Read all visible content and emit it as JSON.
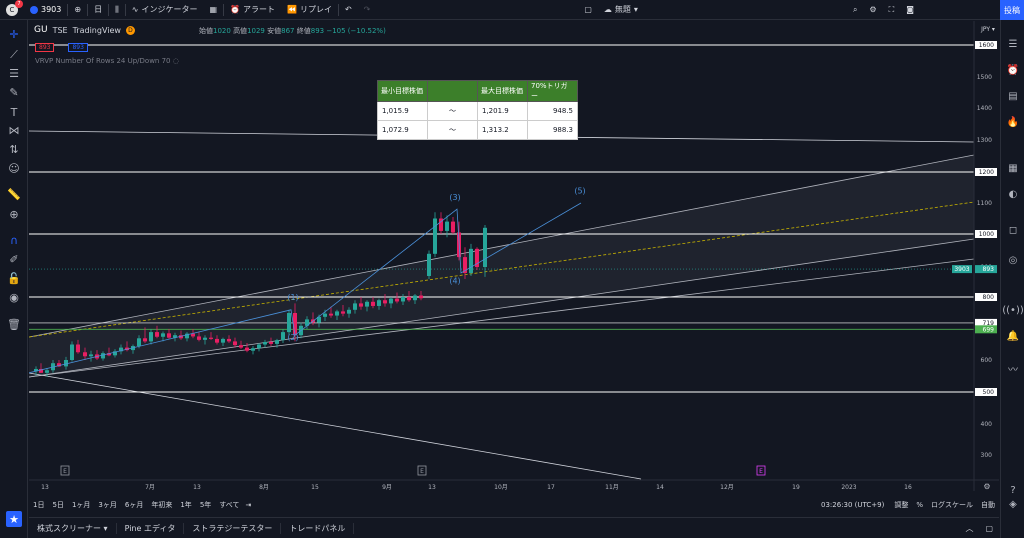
{
  "topbar": {
    "avatar_badge": "7",
    "symbol": "3903",
    "interval": "日",
    "indicators": "インジケーター",
    "alert": "アラート",
    "replay": "リプレイ",
    "layout_name": "無題",
    "post": "投稿"
  },
  "legend": {
    "symbol": "GU",
    "exchange": "TSE",
    "source": "TradingView",
    "badge": "D",
    "price_sell": "893",
    "price_buy": "893",
    "open_label": "始値",
    "open": "1020",
    "high_label": "高値",
    "high": "1029",
    "low_label": "安値",
    "low": "867",
    "close_label": "終値",
    "close": "893",
    "change": "−105 (−10.52%)",
    "vrvp": "VRVP Number Of Rows 24 Up/Down 70"
  },
  "table": {
    "headers": [
      "最小目標株価",
      "",
      "最大目標株価",
      "70%トリガー"
    ],
    "rows": [
      [
        "1,015.9",
        "～",
        "1,201.9",
        "948.5"
      ],
      [
        "1,072.9",
        "～",
        "1,313.2",
        "988.3"
      ]
    ]
  },
  "price_axis": {
    "currency": "JPY",
    "ticks": [
      "1600",
      "1500",
      "1400",
      "1300",
      "1200",
      "1100",
      "1000",
      "900",
      "800",
      "700",
      "600",
      "500",
      "400",
      "300"
    ],
    "boxed_labels": [
      "1600",
      "1200",
      "1000",
      "800",
      "719",
      "699",
      "500"
    ],
    "last_symbol": "3903",
    "last_price": "893"
  },
  "time_axis": {
    "labels": [
      "13",
      "7月",
      "13",
      "8月",
      "15",
      "9月",
      "13",
      "10月",
      "17",
      "11月",
      "14",
      "12月",
      "19",
      "2023",
      "16"
    ]
  },
  "wave_labels": [
    "(1)",
    "(2)",
    "(3)",
    "(4)",
    "(5)"
  ],
  "event_markers": [
    "E",
    "E",
    "E"
  ],
  "ranges": [
    "1日",
    "5日",
    "1ヶ月",
    "3ヶ月",
    "6ヶ月",
    "年初来",
    "1年",
    "5年",
    "すべて"
  ],
  "status": {
    "time": "03:26:30 (UTC+9)",
    "adjust": "調整",
    "percent": "%",
    "log": "ログスケール",
    "auto": "自動"
  },
  "panels": [
    "株式スクリーナー",
    "Pine エディタ",
    "ストラテジーテスター",
    "トレードパネル"
  ],
  "colors": {
    "background": "#131722",
    "up": "#26a69a",
    "down": "#e91e63",
    "accent": "#2962ff",
    "wave": "#4a90d9",
    "table_header": "#3c7f2a"
  }
}
